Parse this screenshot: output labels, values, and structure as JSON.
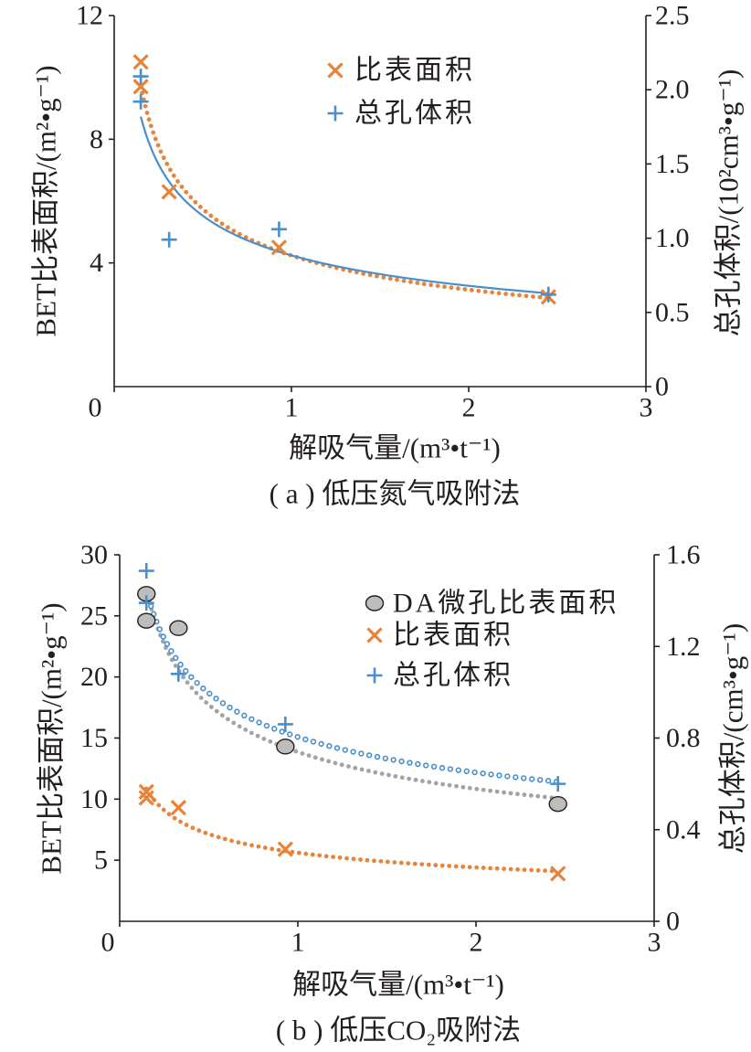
{
  "chart_data": [
    {
      "type": "scatter",
      "caption": "( a ) 低压氮气吸附法",
      "xlabel": "解吸气量/(m³•t⁻¹)",
      "ylabel": "BET比表面积/(m²•g⁻¹)",
      "y2label": "总孔体积/(10²cm³•g⁻¹)",
      "xlim": [
        0,
        3
      ],
      "ylim": [
        0,
        12
      ],
      "y2lim": [
        0,
        2.5
      ],
      "x_ticks": [
        0,
        1,
        2,
        3
      ],
      "x_tick_labels": [
        "0",
        "1",
        "2",
        "3"
      ],
      "y_ticks": [
        4,
        8,
        12
      ],
      "y_tick_labels": [
        "4",
        "8",
        "12"
      ],
      "y2_ticks": [
        0,
        0.5,
        1,
        1.5,
        2,
        2.5
      ],
      "y2_tick_labels": [
        "0",
        "0.5",
        "1.0",
        "1.5",
        "2.0",
        "2.5"
      ],
      "grid": false,
      "legend_position": "upper-center",
      "x": [
        0.15,
        0.15,
        0.31,
        0.93,
        2.45
      ],
      "series": [
        {
          "name": "比表面积",
          "axis": "left",
          "marker": "x",
          "color": "#E8833A",
          "line_color": "#E8833A",
          "trendline": "power",
          "trendline_style": "dotted",
          "values": [
            10.5,
            9.7,
            6.3,
            4.5,
            2.9
          ]
        },
        {
          "name": "总孔体积",
          "axis": "right",
          "marker": "+",
          "color": "#4A8FCB",
          "line_color": "#4A8FCB",
          "trendline": "power",
          "trendline_style": "solid",
          "values": [
            2.09,
            1.92,
            0.99,
            1.06,
            0.62
          ]
        }
      ]
    },
    {
      "type": "scatter",
      "caption": "( b ) 低压CO₂吸附法",
      "xlabel": "解吸气量/(m³•t⁻¹)",
      "ylabel": "BET比表面积/(m²•g⁻¹)",
      "y2label": "总孔体积/(cm³•g⁻¹)",
      "xlim": [
        0,
        3
      ],
      "ylim": [
        0,
        30
      ],
      "y2lim": [
        0,
        1.6
      ],
      "x_ticks": [
        0,
        1,
        2,
        3
      ],
      "x_tick_labels": [
        "0",
        "1",
        "2",
        "3"
      ],
      "y_ticks": [
        5,
        10,
        15,
        20,
        25,
        30
      ],
      "y_tick_labels": [
        "5",
        "10",
        "15",
        "20",
        "25",
        "30"
      ],
      "y2_ticks": [
        0,
        0.4,
        0.8,
        1.2,
        1.6
      ],
      "y2_tick_labels": [
        "0",
        "0.4",
        "0.8",
        "1.2",
        "1.6"
      ],
      "grid": false,
      "legend_position": "upper-right",
      "x": [
        0.15,
        0.15,
        0.33,
        0.93,
        2.46
      ],
      "series": [
        {
          "name": "DA微孔比表面积",
          "axis": "left",
          "marker": "circle",
          "color": "#BDBDBD",
          "line_color": "#A3A3A3",
          "trendline": "power",
          "trendline_style": "dotted",
          "values": [
            26.8,
            24.6,
            24.0,
            14.3,
            9.6
          ]
        },
        {
          "name": "比表面积",
          "axis": "left",
          "marker": "x",
          "color": "#E8833A",
          "line_color": "#E8833A",
          "trendline": "power",
          "trendline_style": "dotted",
          "values": [
            10.6,
            10.1,
            9.3,
            5.9,
            3.9
          ]
        },
        {
          "name": "总孔体积",
          "axis": "right",
          "marker": "+",
          "color": "#4A8FCB",
          "line_color": "#4A8FCB",
          "trendline": "power",
          "trendline_style": "hollow-dotted",
          "values": [
            1.53,
            1.39,
            1.08,
            0.86,
            0.6
          ]
        }
      ]
    }
  ]
}
